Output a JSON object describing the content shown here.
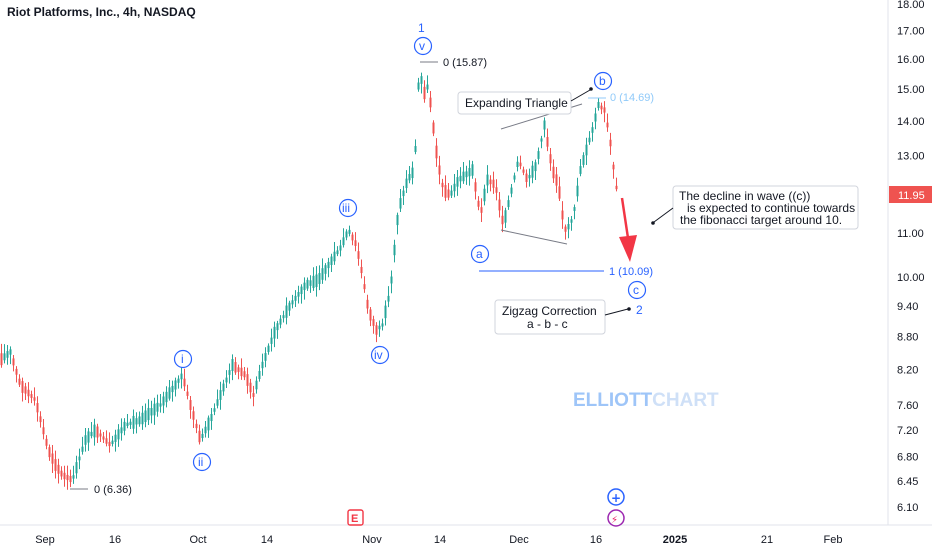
{
  "chart_data": {
    "type": "candlestick",
    "title": "Riot Platforms, Inc., 4h, NASDAQ",
    "y_ticks": [
      18.0,
      17.0,
      16.0,
      15.0,
      14.0,
      13.0,
      11.0,
      10.0,
      9.4,
      8.8,
      8.2,
      7.6,
      7.2,
      6.8,
      6.45,
      6.1
    ],
    "y_tick_labels": [
      "18.00",
      "17.00",
      "16.00",
      "15.00",
      "14.00",
      "13.00",
      "11.00",
      "10.00",
      "9.40",
      "8.80",
      "8.20",
      "7.60",
      "7.20",
      "6.80",
      "6.45",
      "6.10"
    ],
    "x_tick_labels": [
      "Sep",
      "16",
      "Oct",
      "14",
      "Nov",
      "14",
      "Dec",
      "16",
      "2025",
      "21",
      "Feb"
    ],
    "last_price_label": "11.95",
    "last_price": 11.95,
    "colors": {
      "up": "#26a69a",
      "down": "#ef5350",
      "accent": "#2962ff",
      "fib_light": "#90caf9",
      "arrow": "#f23645"
    },
    "scale": "log",
    "grid": false,
    "fib_labels": [
      {
        "text": "0 (15.87)",
        "value": 15.87
      },
      {
        "text": "0 (14.69)",
        "value": 14.69
      },
      {
        "text": "1 (10.09)",
        "value": 10.09
      },
      {
        "text": "0 (6.36)",
        "value": 6.36
      }
    ],
    "wave_labels": [
      {
        "label": "1",
        "style": "plain"
      },
      {
        "label": "v",
        "style": "circle"
      },
      {
        "label": "iii",
        "style": "circle"
      },
      {
        "label": "iv",
        "style": "circle"
      },
      {
        "label": "i",
        "style": "circle"
      },
      {
        "label": "ii",
        "style": "circle"
      },
      {
        "label": "a",
        "style": "circle"
      },
      {
        "label": "b",
        "style": "circle"
      },
      {
        "label": "c",
        "style": "circle"
      },
      {
        "label": "2",
        "style": "plain"
      }
    ],
    "annotations": {
      "expanding_triangle": "Expanding Triangle",
      "decline_line1": "The decline in wave ((c))",
      "decline_line2": "is expected to continue towards",
      "decline_line3": "the fibonacci target around 10.",
      "zigzag_line1": "Zigzag Correction",
      "zigzag_line2": "a - b - c"
    },
    "watermark": {
      "part1": "ELLIOTT",
      "part2": "CHART"
    },
    "event_icons": [
      "E",
      "+",
      "⚡"
    ]
  }
}
